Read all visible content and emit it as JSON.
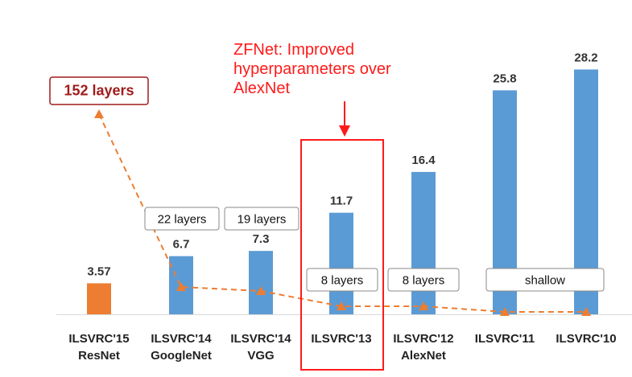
{
  "chart_data": {
    "type": "bar",
    "categories": [
      [
        "ILSVRC'15",
        "ResNet"
      ],
      [
        "ILSVRC'14",
        "GoogleNet"
      ],
      [
        "ILSVRC'14",
        "VGG"
      ],
      [
        "ILSVRC'13",
        ""
      ],
      [
        "ILSVRC'12",
        "AlexNet"
      ],
      [
        "ILSVRC'11",
        ""
      ],
      [
        "ILSVRC'10",
        ""
      ]
    ],
    "values": [
      3.57,
      6.7,
      7.3,
      11.7,
      16.4,
      25.8,
      28.2
    ],
    "value_labels": [
      "3.57",
      "6.7",
      "7.3",
      "11.7",
      "16.4",
      "25.8",
      "28.2"
    ],
    "ylim": [
      0,
      30
    ],
    "grid": false,
    "colors": {
      "bar": "#5b9bd5",
      "highlight_bar": "#ed7d31",
      "depth_line": "#ed7d31",
      "box_border": "#888888",
      "resnet_text": "#a01c1c",
      "annotation": "#ff1a1a"
    },
    "highlight_index": 0,
    "depth_annotations": [
      {
        "text": "152 layers",
        "category_index": 0
      },
      {
        "text": "22 layers",
        "category_index": 1
      },
      {
        "text": "19 layers",
        "category_index": 2
      },
      {
        "text": "8 layers",
        "category_index": 3
      },
      {
        "text": "8 layers",
        "category_index": 4
      },
      {
        "text": "shallow",
        "category_indices": [
          5,
          6
        ]
      }
    ],
    "depth_line_points": [
      152,
      22,
      19,
      8,
      8,
      0,
      0
    ]
  },
  "callout": {
    "lines": [
      "ZFNet: Improved",
      "hyperparameters over",
      "AlexNet"
    ],
    "target_category_index": 3
  }
}
